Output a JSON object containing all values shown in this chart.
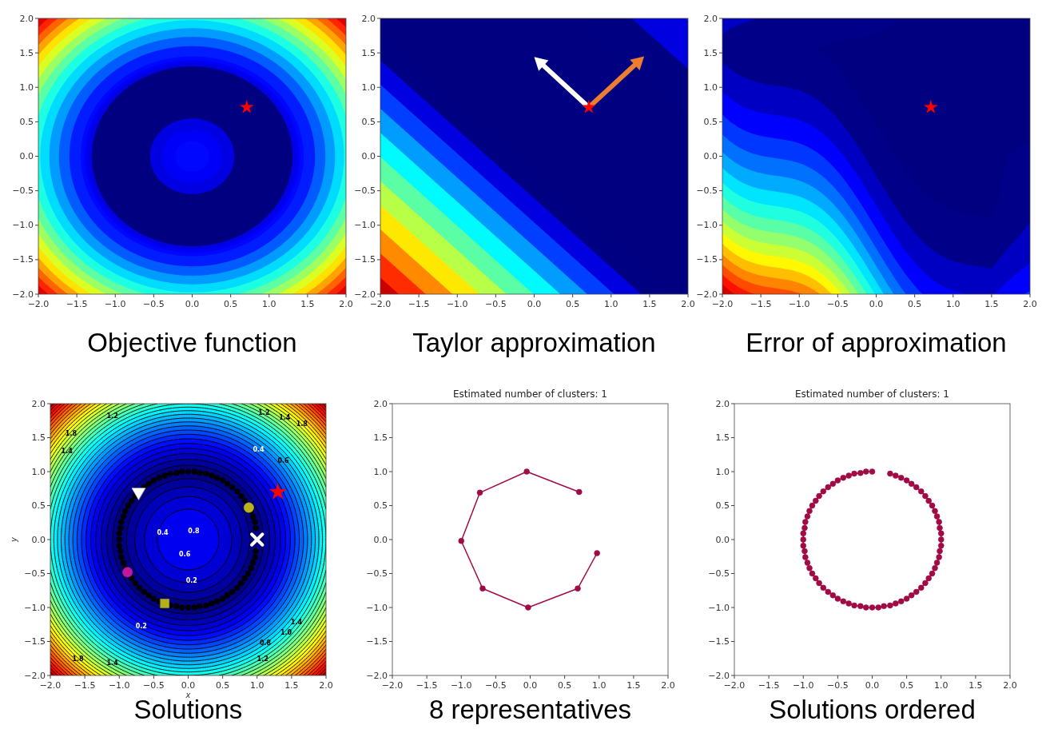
{
  "chart_data": [
    {
      "type": "scatter",
      "annotations": [
        "Objective function"
      ],
      "xlim": [
        -2,
        2
      ],
      "ylim": [
        -2,
        2
      ],
      "xticks": [
        {
          "value": -2,
          "label": "−2.0"
        },
        {
          "value": -1.5,
          "label": "−1.5"
        },
        {
          "value": -1,
          "label": "−1.0"
        },
        {
          "value": -0.5,
          "label": "−0.5"
        },
        {
          "value": 0,
          "label": "0.0"
        },
        {
          "value": 0.5,
          "label": "0.5"
        },
        {
          "value": 1,
          "label": "1.0"
        },
        {
          "value": 1.5,
          "label": "1.5"
        },
        {
          "value": 2,
          "label": "2.0"
        }
      ],
      "yticks": [
        {
          "value": -2,
          "label": "−2.0"
        },
        {
          "value": -1.5,
          "label": "−1.5"
        },
        {
          "value": -1,
          "label": "−1.0"
        },
        {
          "value": -0.5,
          "label": "−0.5"
        },
        {
          "value": 0,
          "label": "0.0"
        },
        {
          "value": 0.5,
          "label": "0.5"
        },
        {
          "value": 1,
          "label": "1.0"
        },
        {
          "value": 1.5,
          "label": "1.5"
        },
        {
          "value": 2,
          "label": "2.0"
        }
      ],
      "series": [
        {
          "color": "#ff0000",
          "marker": "star",
          "x": [
            0.71
          ],
          "values": [
            0.71
          ]
        }
      ]
    },
    {
      "type": "scatter",
      "annotations": [
        "Taylor approximation"
      ],
      "xlim": [
        -2,
        2
      ],
      "ylim": [
        -2,
        2
      ],
      "xticks": [
        {
          "value": -2,
          "label": "−2.0"
        },
        {
          "value": -1.5,
          "label": "−1.5"
        },
        {
          "value": -1,
          "label": "−1.0"
        },
        {
          "value": -0.5,
          "label": "−0.5"
        },
        {
          "value": 0,
          "label": "0.0"
        },
        {
          "value": 0.5,
          "label": "0.5"
        },
        {
          "value": 1,
          "label": "1.0"
        },
        {
          "value": 1.5,
          "label": "1.5"
        },
        {
          "value": 2,
          "label": "2.0"
        }
      ],
      "yticks": [
        {
          "value": -2,
          "label": "−2.0"
        },
        {
          "value": -1.5,
          "label": "−1.5"
        },
        {
          "value": -1,
          "label": "−1.0"
        },
        {
          "value": -0.5,
          "label": "−0.5"
        },
        {
          "value": 0,
          "label": "0.0"
        },
        {
          "value": 0.5,
          "label": "0.5"
        },
        {
          "value": 1,
          "label": "1.0"
        },
        {
          "value": 1.5,
          "label": "1.5"
        },
        {
          "value": 2,
          "label": "2.0"
        }
      ],
      "series": [
        {
          "color": "#ff0000",
          "marker": "star",
          "x": [
            0.71
          ],
          "values": [
            0.71
          ]
        }
      ]
    },
    {
      "type": "scatter",
      "annotations": [
        "Error of approximation"
      ],
      "xlim": [
        -2,
        2
      ],
      "ylim": [
        -2,
        2
      ],
      "xticks": [
        {
          "value": -2,
          "label": "−2.0"
        },
        {
          "value": -1.5,
          "label": "−1.5"
        },
        {
          "value": -1,
          "label": "−1.0"
        },
        {
          "value": -0.5,
          "label": "−0.5"
        },
        {
          "value": 0,
          "label": "0.0"
        },
        {
          "value": 0.5,
          "label": "0.5"
        },
        {
          "value": 1,
          "label": "1.0"
        },
        {
          "value": 1.5,
          "label": "1.5"
        },
        {
          "value": 2,
          "label": "2.0"
        }
      ],
      "yticks": [
        {
          "value": -2,
          "label": "−2.0"
        },
        {
          "value": -1.5,
          "label": "−1.5"
        },
        {
          "value": -1,
          "label": "−1.0"
        },
        {
          "value": -0.5,
          "label": "−0.5"
        },
        {
          "value": 0,
          "label": "0.0"
        },
        {
          "value": 0.5,
          "label": "0.5"
        },
        {
          "value": 1,
          "label": "1.0"
        },
        {
          "value": 1.5,
          "label": "1.5"
        },
        {
          "value": 2,
          "label": "2.0"
        }
      ],
      "series": [
        {
          "color": "#ff0000",
          "marker": "star",
          "x": [
            0.71
          ],
          "values": [
            0.71
          ]
        }
      ]
    },
    {
      "type": "scatter",
      "xlabel": "x",
      "ylabel": "y",
      "xlim": [
        -2,
        2
      ],
      "ylim": [
        -2,
        2
      ],
      "annotations": [
        "Solutions",
        "0.8",
        "0.6",
        "0.4",
        "0.2",
        "0.2",
        "0.4",
        "0.6",
        "0.8",
        "1.0",
        "1.2",
        "1.4",
        "1.2",
        "1.4",
        "1.8",
        "1.2",
        "1.4",
        "1.8",
        "1.4",
        "1.8"
      ],
      "xticks": [
        {
          "value": -2,
          "label": "−2.0"
        },
        {
          "value": -1.5,
          "label": "−1.5"
        },
        {
          "value": -1,
          "label": "−1.0"
        },
        {
          "value": -0.5,
          "label": "−0.5"
        },
        {
          "value": 0,
          "label": "0.0"
        },
        {
          "value": 0.5,
          "label": "0.5"
        },
        {
          "value": 1,
          "label": "1.0"
        },
        {
          "value": 1.5,
          "label": "1.5"
        },
        {
          "value": 2,
          "label": "2.0"
        }
      ],
      "yticks": [
        {
          "value": -2,
          "label": "−2.0"
        },
        {
          "value": -1.5,
          "label": "−1.5"
        },
        {
          "value": -1,
          "label": "−1.0"
        },
        {
          "value": -0.5,
          "label": "−0.5"
        },
        {
          "value": 0,
          "label": "0.0"
        },
        {
          "value": 0.5,
          "label": "0.5"
        },
        {
          "value": 1,
          "label": "1.0"
        },
        {
          "value": 1.5,
          "label": "1.5"
        },
        {
          "value": 2,
          "label": "2.0"
        }
      ],
      "series": [
        {
          "color": "#000000",
          "marker": "circle",
          "x": [
            0.98,
            0.97,
            0.94,
            0.91,
            0.82,
            0.77,
            0.71,
            0.64,
            0.57,
            0.5,
            0.42,
            0.34,
            0.26,
            0.17,
            0.09,
            0.0,
            -0.09,
            -0.17,
            -0.26,
            -0.34,
            -0.42,
            -0.5,
            -0.57,
            -0.64,
            -0.77,
            -0.82,
            -0.87,
            -0.91,
            -0.94,
            -0.97,
            -0.98,
            -1.0,
            -1.0,
            -1.0,
            -0.98,
            -0.97,
            -0.94,
            -0.91,
            -0.82,
            -0.77,
            -0.71,
            -0.64,
            -0.57,
            -0.5,
            -0.42,
            -0.26,
            -0.17,
            -0.09,
            0.0,
            0.09,
            0.17,
            0.26,
            0.34,
            0.42,
            0.5,
            0.57,
            0.64,
            0.71,
            0.77,
            0.82,
            0.87,
            0.91,
            0.94,
            0.97,
            0.98
          ],
          "values": [
            0.17,
            0.26,
            0.34,
            0.42,
            0.57,
            0.64,
            0.71,
            0.77,
            0.82,
            0.87,
            0.91,
            0.94,
            0.97,
            0.98,
            1.0,
            1.0,
            1.0,
            0.98,
            0.97,
            0.94,
            0.91,
            0.87,
            0.82,
            0.77,
            0.64,
            0.57,
            0.5,
            0.42,
            0.34,
            0.26,
            0.17,
            0.09,
            0.0,
            -0.09,
            -0.17,
            -0.26,
            -0.34,
            -0.42,
            -0.57,
            -0.64,
            -0.71,
            -0.77,
            -0.82,
            -0.87,
            -0.91,
            -0.97,
            -0.98,
            -1.0,
            -1.0,
            -1.0,
            -0.98,
            -0.97,
            -0.94,
            -0.91,
            -0.87,
            -0.82,
            -0.77,
            -0.71,
            -0.64,
            -0.57,
            -0.5,
            -0.42,
            -0.34,
            -0.26,
            -0.17
          ]
        },
        {
          "color": "#ffffff",
          "marker": "triangle",
          "x": [
            -0.72
          ],
          "values": [
            0.7
          ]
        },
        {
          "color": "#bdb21a",
          "marker": "circle",
          "x": [
            0.88
          ],
          "values": [
            0.47
          ]
        },
        {
          "color": "#ffffff",
          "marker": "cross",
          "x": [
            1.0
          ],
          "values": [
            0.0
          ]
        },
        {
          "color": "#c0189b",
          "marker": "circle",
          "x": [
            -0.88
          ],
          "values": [
            -0.48
          ]
        },
        {
          "color": "#b5b019",
          "marker": "square",
          "x": [
            -0.34
          ],
          "values": [
            -0.94
          ]
        },
        {
          "color": "#ff0000",
          "marker": "star",
          "x": [
            1.3
          ],
          "values": [
            0.7
          ]
        }
      ]
    },
    {
      "type": "line",
      "title": "Estimated number of clusters: 1",
      "annotations": [
        "8 representatives"
      ],
      "xlim": [
        -2,
        2
      ],
      "ylim": [
        -2,
        2
      ],
      "xticks": [
        {
          "value": -2,
          "label": "−2.0"
        },
        {
          "value": -1.5,
          "label": "−1.5"
        },
        {
          "value": -1,
          "label": "−1.0"
        },
        {
          "value": -0.5,
          "label": "−0.5"
        },
        {
          "value": 0,
          "label": "0.0"
        },
        {
          "value": 0.5,
          "label": "0.5"
        },
        {
          "value": 1,
          "label": "1.0"
        },
        {
          "value": 1.5,
          "label": "1.5"
        },
        {
          "value": 2,
          "label": "2.0"
        }
      ],
      "yticks": [
        {
          "value": -2,
          "label": "−2.0"
        },
        {
          "value": -1.5,
          "label": "−1.5"
        },
        {
          "value": -1,
          "label": "−1.0"
        },
        {
          "value": -0.5,
          "label": "−0.5"
        },
        {
          "value": 0,
          "label": "0.0"
        },
        {
          "value": 0.5,
          "label": "0.5"
        },
        {
          "value": 1,
          "label": "1.0"
        },
        {
          "value": 1.5,
          "label": "1.5"
        },
        {
          "value": 2,
          "label": "2.0"
        }
      ],
      "series": [
        {
          "color": "#a00b45",
          "marker": "circle",
          "x": [
            0.71,
            -0.05,
            -0.73,
            -1.0,
            -0.69,
            -0.03,
            0.69,
            0.97
          ],
          "values": [
            0.7,
            1.0,
            0.69,
            -0.02,
            -0.72,
            -1.0,
            -0.72,
            -0.2
          ]
        }
      ]
    },
    {
      "type": "line",
      "title": "Estimated number of clusters: 1",
      "annotations": [
        "Solutions ordered"
      ],
      "xlim": [
        -2,
        2
      ],
      "ylim": [
        -2,
        2
      ],
      "xticks": [
        {
          "value": -2,
          "label": "−2.0"
        },
        {
          "value": -1.5,
          "label": "−1.5"
        },
        {
          "value": -1,
          "label": "−1.0"
        },
        {
          "value": -0.5,
          "label": "−0.5"
        },
        {
          "value": 0,
          "label": "0.0"
        },
        {
          "value": 0.5,
          "label": "0.5"
        },
        {
          "value": 1,
          "label": "1.0"
        },
        {
          "value": 1.5,
          "label": "1.5"
        },
        {
          "value": 2,
          "label": "2.0"
        }
      ],
      "yticks": [
        {
          "value": -2,
          "label": "−2.0"
        },
        {
          "value": -1.5,
          "label": "−1.5"
        },
        {
          "value": -1,
          "label": "−1.0"
        },
        {
          "value": -0.5,
          "label": "−0.5"
        },
        {
          "value": 0,
          "label": "0.0"
        },
        {
          "value": 0.5,
          "label": "0.5"
        },
        {
          "value": 1,
          "label": "1.0"
        },
        {
          "value": 1.5,
          "label": "1.5"
        },
        {
          "value": 2,
          "label": "2.0"
        }
      ],
      "series": [
        {
          "color": "#a00b45",
          "marker": "circle",
          "x": [
            0.0,
            -0.09,
            -0.17,
            -0.26,
            -0.34,
            -0.42,
            -0.5,
            -0.57,
            -0.64,
            -0.71,
            -0.77,
            -0.82,
            -0.87,
            -0.91,
            -0.94,
            -0.97,
            -0.98,
            -1.0,
            -1.0,
            -1.0,
            -0.98,
            -0.97,
            -0.94,
            -0.91,
            -0.87,
            -0.82,
            -0.77,
            -0.71,
            -0.64,
            -0.57,
            -0.5,
            -0.42,
            -0.34,
            -0.26,
            -0.17,
            -0.09,
            0.0,
            0.09,
            0.17,
            0.26,
            0.34,
            0.42,
            0.5,
            0.57,
            0.64,
            0.71,
            0.77,
            0.82,
            0.87,
            0.91,
            0.94,
            0.97,
            0.98,
            1.0,
            1.0,
            1.0,
            0.98,
            0.97,
            0.94,
            0.91,
            0.87,
            0.82,
            0.77,
            0.71,
            0.64,
            0.57,
            0.5,
            0.42,
            0.34,
            0.26
          ],
          "values": [
            1.0,
            1.0,
            0.98,
            0.97,
            0.94,
            0.91,
            0.87,
            0.82,
            0.77,
            0.71,
            0.64,
            0.57,
            0.5,
            0.42,
            0.34,
            0.26,
            0.17,
            0.09,
            0.0,
            -0.09,
            -0.17,
            -0.26,
            -0.34,
            -0.42,
            -0.5,
            -0.57,
            -0.64,
            -0.71,
            -0.77,
            -0.82,
            -0.87,
            -0.91,
            -0.94,
            -0.97,
            -0.98,
            -1.0,
            -1.0,
            -1.0,
            -0.98,
            -0.97,
            -0.94,
            -0.91,
            -0.87,
            -0.82,
            -0.77,
            -0.71,
            -0.64,
            -0.57,
            -0.5,
            -0.42,
            -0.34,
            -0.26,
            -0.17,
            -0.09,
            0.0,
            0.09,
            0.17,
            0.26,
            0.34,
            0.42,
            0.5,
            0.57,
            0.64,
            0.71,
            0.77,
            0.82,
            0.87,
            0.91,
            0.94,
            0.97
          ]
        }
      ]
    }
  ]
}
